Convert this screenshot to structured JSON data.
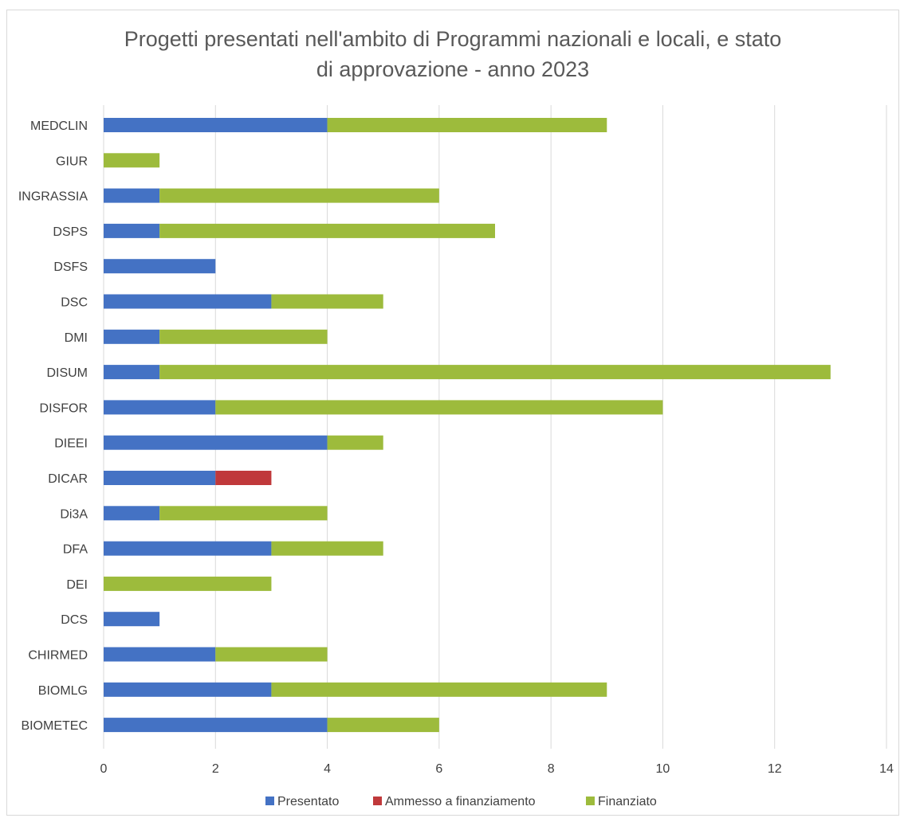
{
  "chart_data": {
    "type": "bar",
    "orientation": "horizontal",
    "stacked": true,
    "title_lines": [
      "Progetti presentati nell'ambito di Programmi nazionali e locali, e stato",
      "di approvazione - anno 2023"
    ],
    "categories": [
      "MEDCLIN",
      "GIUR",
      "INGRASSIA",
      "DSPS",
      "DSFS",
      "DSC",
      "DMI",
      "DISUM",
      "DISFOR",
      "DIEEI",
      "DICAR",
      "Di3A",
      "DFA",
      "DEI",
      "DCS",
      "CHIRMED",
      "BIOMLG",
      "BIOMETEC"
    ],
    "series": [
      {
        "name": "Presentato",
        "color": "#4472c4",
        "values": [
          4,
          0,
          1,
          1,
          2,
          3,
          1,
          1,
          2,
          4,
          2,
          1,
          3,
          0,
          1,
          2,
          3,
          4
        ]
      },
      {
        "name": "Ammesso a finanziamento",
        "color": "#c0393b",
        "values": [
          0,
          0,
          0,
          0,
          0,
          0,
          0,
          0,
          0,
          0,
          1,
          0,
          0,
          0,
          0,
          0,
          0,
          0
        ]
      },
      {
        "name": "Finanziato",
        "color": "#9dbb3c",
        "values": [
          5,
          1,
          5,
          6,
          0,
          2,
          3,
          12,
          8,
          1,
          0,
          3,
          2,
          3,
          0,
          2,
          6,
          2
        ]
      }
    ],
    "xlim": [
      0,
      14
    ],
    "xticks": [
      0,
      2,
      4,
      6,
      8,
      10,
      12,
      14
    ],
    "grid": true,
    "legend_position": "bottom"
  }
}
